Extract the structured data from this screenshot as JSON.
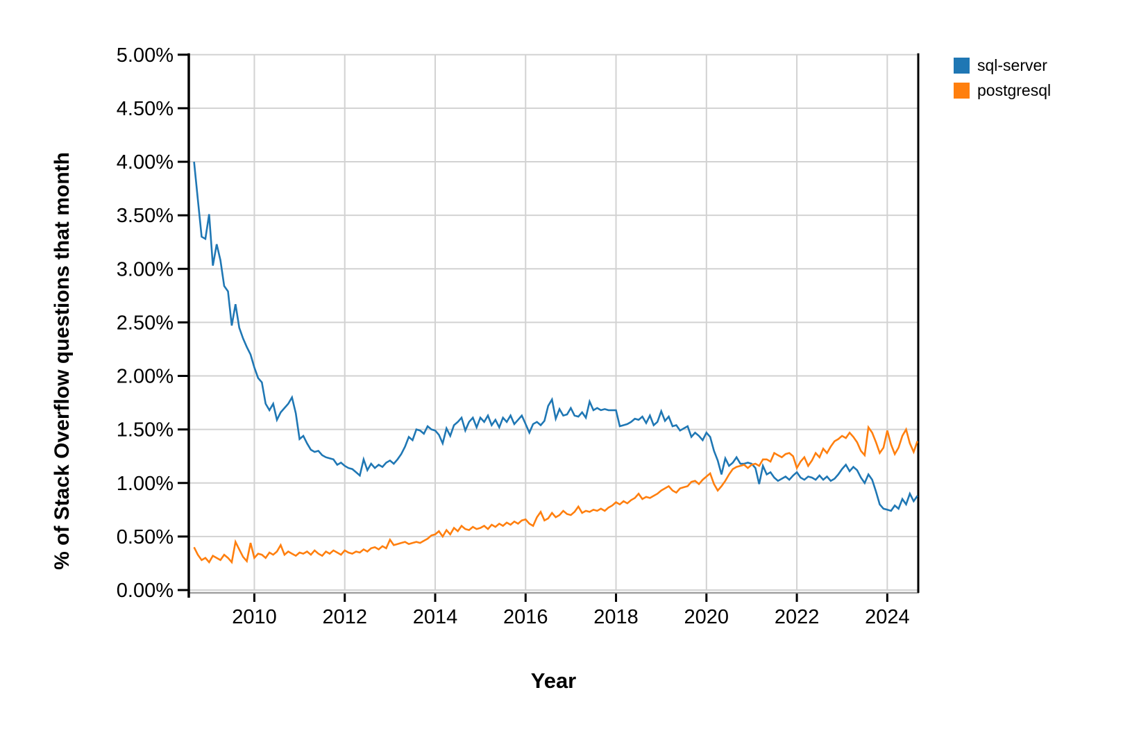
{
  "figure": {
    "background": "#ffffff"
  },
  "chart_data": {
    "type": "line",
    "title": "",
    "xlabel": "Year",
    "ylabel": "% of Stack Overflow questions that month",
    "grid": true,
    "legend_position": "top-right-outside",
    "xlim_years": [
      2008.55,
      2024.67
    ],
    "ylim": [
      0,
      5
    ],
    "x_ticks": [
      {
        "v": 2010,
        "label": "2010"
      },
      {
        "v": 2012,
        "label": "2012"
      },
      {
        "v": 2014,
        "label": "2014"
      },
      {
        "v": 2016,
        "label": "2016"
      },
      {
        "v": 2018,
        "label": "2018"
      },
      {
        "v": 2020,
        "label": "2020"
      },
      {
        "v": 2022,
        "label": "2022"
      },
      {
        "v": 2024,
        "label": "2024"
      }
    ],
    "y_ticks": [
      {
        "v": 0.0,
        "label": "0.00%"
      },
      {
        "v": 0.5,
        "label": "0.50%"
      },
      {
        "v": 1.0,
        "label": "1.00%"
      },
      {
        "v": 1.5,
        "label": "1.50%"
      },
      {
        "v": 2.0,
        "label": "2.00%"
      },
      {
        "v": 2.5,
        "label": "2.50%"
      },
      {
        "v": 3.0,
        "label": "3.00%"
      },
      {
        "v": 3.5,
        "label": "3.50%"
      },
      {
        "v": 4.0,
        "label": "4.00%"
      },
      {
        "v": 4.5,
        "label": "4.50%"
      },
      {
        "v": 5.0,
        "label": "5.00%"
      }
    ],
    "x_start": {
      "year": 2008,
      "month": 9
    },
    "x_frequency": "monthly",
    "series": [
      {
        "name": "sql-server",
        "color": "#1f77b4",
        "values": [
          4.0,
          3.65,
          3.3,
          3.28,
          3.51,
          3.03,
          3.23,
          3.08,
          2.84,
          2.79,
          2.47,
          2.67,
          2.45,
          2.35,
          2.27,
          2.2,
          2.08,
          1.98,
          1.94,
          1.74,
          1.68,
          1.74,
          1.59,
          1.66,
          1.7,
          1.74,
          1.8,
          1.65,
          1.41,
          1.44,
          1.37,
          1.31,
          1.29,
          1.3,
          1.26,
          1.24,
          1.23,
          1.22,
          1.17,
          1.19,
          1.16,
          1.14,
          1.13,
          1.1,
          1.07,
          1.22,
          1.12,
          1.18,
          1.14,
          1.17,
          1.15,
          1.19,
          1.21,
          1.18,
          1.22,
          1.27,
          1.34,
          1.43,
          1.4,
          1.5,
          1.49,
          1.46,
          1.53,
          1.5,
          1.49,
          1.45,
          1.37,
          1.51,
          1.44,
          1.54,
          1.57,
          1.61,
          1.49,
          1.57,
          1.61,
          1.52,
          1.61,
          1.57,
          1.63,
          1.54,
          1.59,
          1.52,
          1.61,
          1.57,
          1.63,
          1.55,
          1.59,
          1.63,
          1.55,
          1.47,
          1.55,
          1.57,
          1.54,
          1.58,
          1.72,
          1.78,
          1.6,
          1.69,
          1.63,
          1.64,
          1.7,
          1.63,
          1.62,
          1.66,
          1.61,
          1.76,
          1.68,
          1.7,
          1.68,
          1.69,
          1.68,
          1.68,
          1.68,
          1.53,
          1.54,
          1.55,
          1.57,
          1.6,
          1.59,
          1.62,
          1.56,
          1.63,
          1.54,
          1.57,
          1.67,
          1.58,
          1.62,
          1.53,
          1.54,
          1.49,
          1.51,
          1.53,
          1.43,
          1.47,
          1.44,
          1.4,
          1.47,
          1.43,
          1.3,
          1.21,
          1.08,
          1.23,
          1.16,
          1.19,
          1.24,
          1.18,
          1.18,
          1.19,
          1.18,
          1.14,
          0.99,
          1.16,
          1.08,
          1.1,
          1.05,
          1.02,
          1.04,
          1.06,
          1.03,
          1.07,
          1.1,
          1.05,
          1.03,
          1.06,
          1.05,
          1.03,
          1.07,
          1.03,
          1.06,
          1.02,
          1.04,
          1.08,
          1.13,
          1.17,
          1.11,
          1.15,
          1.12,
          1.05,
          1.0,
          1.08,
          1.03,
          0.92,
          0.8,
          0.76,
          0.75,
          0.74,
          0.79,
          0.76,
          0.85,
          0.8,
          0.9,
          0.83,
          0.88
        ]
      },
      {
        "name": "postgresql",
        "color": "#ff7f0e",
        "values": [
          0.4,
          0.33,
          0.28,
          0.3,
          0.26,
          0.32,
          0.3,
          0.28,
          0.33,
          0.3,
          0.26,
          0.45,
          0.38,
          0.31,
          0.27,
          0.44,
          0.3,
          0.34,
          0.33,
          0.3,
          0.35,
          0.33,
          0.36,
          0.42,
          0.33,
          0.36,
          0.34,
          0.32,
          0.35,
          0.34,
          0.36,
          0.33,
          0.37,
          0.34,
          0.32,
          0.36,
          0.34,
          0.37,
          0.35,
          0.33,
          0.37,
          0.35,
          0.34,
          0.36,
          0.35,
          0.38,
          0.36,
          0.39,
          0.4,
          0.38,
          0.41,
          0.39,
          0.47,
          0.42,
          0.43,
          0.44,
          0.45,
          0.43,
          0.44,
          0.45,
          0.44,
          0.46,
          0.48,
          0.51,
          0.52,
          0.55,
          0.5,
          0.56,
          0.52,
          0.58,
          0.55,
          0.6,
          0.57,
          0.56,
          0.59,
          0.57,
          0.58,
          0.6,
          0.57,
          0.61,
          0.59,
          0.62,
          0.6,
          0.63,
          0.61,
          0.64,
          0.62,
          0.65,
          0.66,
          0.62,
          0.6,
          0.68,
          0.73,
          0.65,
          0.67,
          0.72,
          0.68,
          0.7,
          0.74,
          0.71,
          0.7,
          0.73,
          0.78,
          0.72,
          0.74,
          0.73,
          0.75,
          0.74,
          0.76,
          0.74,
          0.77,
          0.79,
          0.82,
          0.8,
          0.83,
          0.81,
          0.84,
          0.86,
          0.9,
          0.85,
          0.87,
          0.86,
          0.88,
          0.9,
          0.93,
          0.95,
          0.97,
          0.93,
          0.91,
          0.95,
          0.96,
          0.97,
          1.01,
          1.02,
          0.99,
          1.03,
          1.06,
          1.09,
          0.99,
          0.93,
          0.97,
          1.02,
          1.08,
          1.13,
          1.15,
          1.16,
          1.17,
          1.14,
          1.17,
          1.18,
          1.16,
          1.22,
          1.22,
          1.2,
          1.28,
          1.26,
          1.24,
          1.27,
          1.28,
          1.25,
          1.14,
          1.2,
          1.24,
          1.16,
          1.21,
          1.28,
          1.24,
          1.32,
          1.28,
          1.34,
          1.39,
          1.41,
          1.44,
          1.42,
          1.47,
          1.43,
          1.38,
          1.3,
          1.26,
          1.52,
          1.47,
          1.38,
          1.28,
          1.33,
          1.49,
          1.36,
          1.27,
          1.33,
          1.44,
          1.5,
          1.37,
          1.29,
          1.39
        ]
      }
    ],
    "style": {
      "grid_color": "#d2d2d2",
      "spine_color": "#000000",
      "domain_color": "#a0a0a0",
      "line_width": 2.6
    }
  }
}
